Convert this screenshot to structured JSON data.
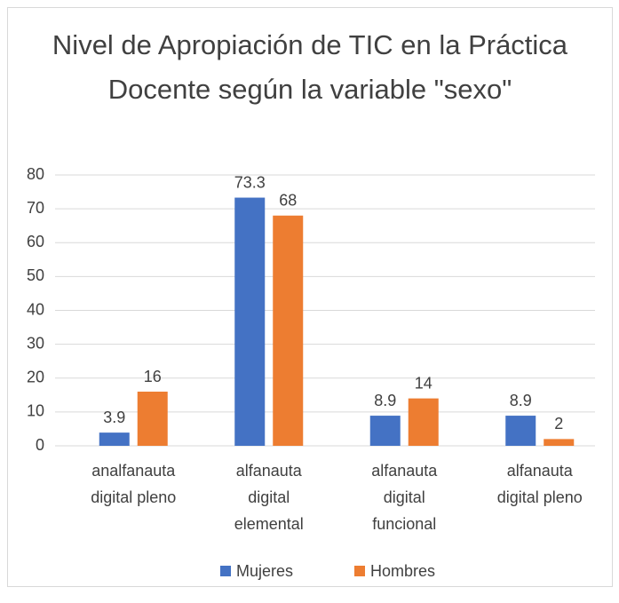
{
  "chart_data": {
    "type": "bar",
    "title": "Nivel de Apropiación de TIC en la Práctica Docente según la variable \"sexo\"",
    "categories": [
      "analfanauta digital pleno",
      "alfanauta digital elemental",
      "alfanauta digital funcional",
      "alfanauta digital pleno"
    ],
    "series": [
      {
        "name": "Mujeres",
        "color": "#4472c4",
        "values": [
          3.9,
          73.3,
          8.9,
          8.9
        ]
      },
      {
        "name": "Hombres",
        "color": "#ed7d31",
        "values": [
          16,
          68,
          14,
          2
        ]
      }
    ],
    "ylim": [
      0,
      80
    ],
    "yticks": [
      0,
      10,
      20,
      30,
      40,
      50,
      60,
      70,
      80
    ],
    "grid": true,
    "legend": "bottom"
  }
}
